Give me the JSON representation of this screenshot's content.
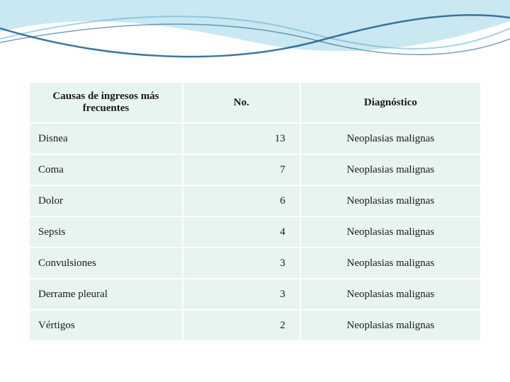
{
  "decor": {
    "wave_back_fill": "#9fd5e5",
    "wave_back_opacity": 0.55,
    "wave_mid_stroke": "#4fa8c9",
    "wave_mid_opacity": 0.5,
    "wave_front_stroke": "#1b5f8c",
    "wave_front_opacity": 0.85
  },
  "table": {
    "header_bg": "#e8f4f0",
    "cell_bg": "#e8f4f0",
    "border_color": "#ffffff",
    "text_color": "#1a1a1a",
    "font_family": "Georgia, serif",
    "header_fontsize": 15,
    "body_fontsize": 15,
    "columns": [
      {
        "label": "Causas de ingresos más frecuentes",
        "align": "left"
      },
      {
        "label": "No.",
        "align": "right"
      },
      {
        "label": "Diagnóstico",
        "align": "center"
      }
    ],
    "rows": [
      {
        "cause": "Disnea",
        "no": "13",
        "dx": "Neoplasias malignas"
      },
      {
        "cause": "Coma",
        "no": "7",
        "dx": "Neoplasias malignas"
      },
      {
        "cause": "Dolor",
        "no": "6",
        "dx": "Neoplasias malignas"
      },
      {
        "cause": "Sepsis",
        "no": "4",
        "dx": "Neoplasias malignas"
      },
      {
        "cause": "Convulsiones",
        "no": "3",
        "dx": "Neoplasias malignas"
      },
      {
        "cause": "Derrame pleural",
        "no": "3",
        "dx": "Neoplasias malignas"
      },
      {
        "cause": "Vértigos",
        "no": "2",
        "dx": "Neoplasias malignas"
      }
    ]
  }
}
